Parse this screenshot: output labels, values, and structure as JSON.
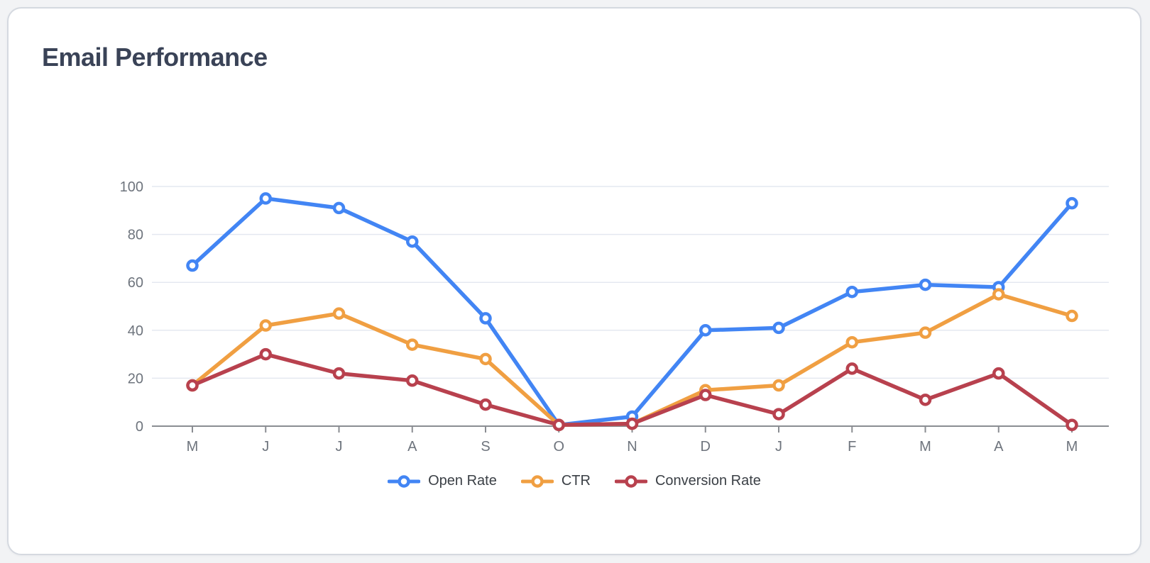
{
  "card": {
    "title": "Email Performance"
  },
  "chart_data": {
    "type": "line",
    "title": "Email Performance",
    "categories": [
      "M",
      "J",
      "J",
      "A",
      "S",
      "O",
      "N",
      "D",
      "J",
      "F",
      "M",
      "A",
      "M"
    ],
    "series": [
      {
        "name": "Open Rate",
        "color": "#4285F4",
        "values": [
          67,
          95,
          91,
          77,
          45,
          0.5,
          4,
          40,
          41,
          56,
          59,
          58,
          93
        ]
      },
      {
        "name": "CTR",
        "color": "#F09F42",
        "values": [
          17,
          42,
          47,
          34,
          28,
          0.5,
          1,
          15,
          17,
          35,
          39,
          55,
          46
        ]
      },
      {
        "name": "Conversion Rate",
        "color": "#B8414E",
        "values": [
          17,
          30,
          22,
          19,
          9,
          0.5,
          1,
          13,
          5,
          24,
          11,
          22,
          0.5
        ]
      }
    ],
    "yticks": [
      0,
      20,
      40,
      60,
      80,
      100
    ],
    "ylim": [
      0,
      100
    ],
    "grid": true,
    "legend_position": "bottom",
    "colors": {
      "grid_line": "#e4e8f0",
      "axis_line": "#8a8d92",
      "tick_label": "#6e747d",
      "marker_fill": "#ffffff"
    }
  }
}
